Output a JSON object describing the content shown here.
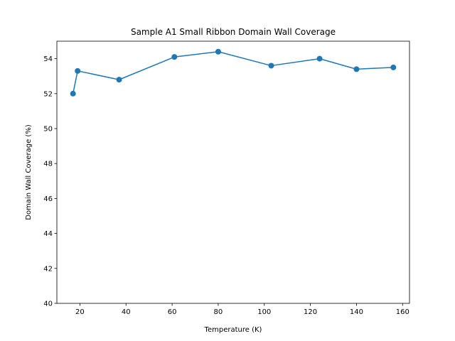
{
  "chart_data": {
    "type": "line",
    "title": "Sample A1 Small Ribbon Domain Wall Coverage",
    "xlabel": "Temperature (K)",
    "ylabel": "Domain Wall Coverage (%)",
    "xlim": [
      10,
      163
    ],
    "ylim": [
      40,
      55
    ],
    "xticks": [
      20,
      40,
      60,
      80,
      100,
      120,
      140,
      160
    ],
    "yticks": [
      40,
      42,
      44,
      46,
      48,
      50,
      52,
      54
    ],
    "grid": false,
    "line_color": "#1f77b4",
    "marker": "circle",
    "series": [
      {
        "x": [
          17,
          19,
          37,
          61,
          80,
          103,
          124,
          140,
          156
        ],
        "y": [
          52.0,
          53.3,
          52.8,
          54.1,
          54.4,
          53.6,
          54.0,
          53.4,
          53.5
        ]
      }
    ]
  }
}
